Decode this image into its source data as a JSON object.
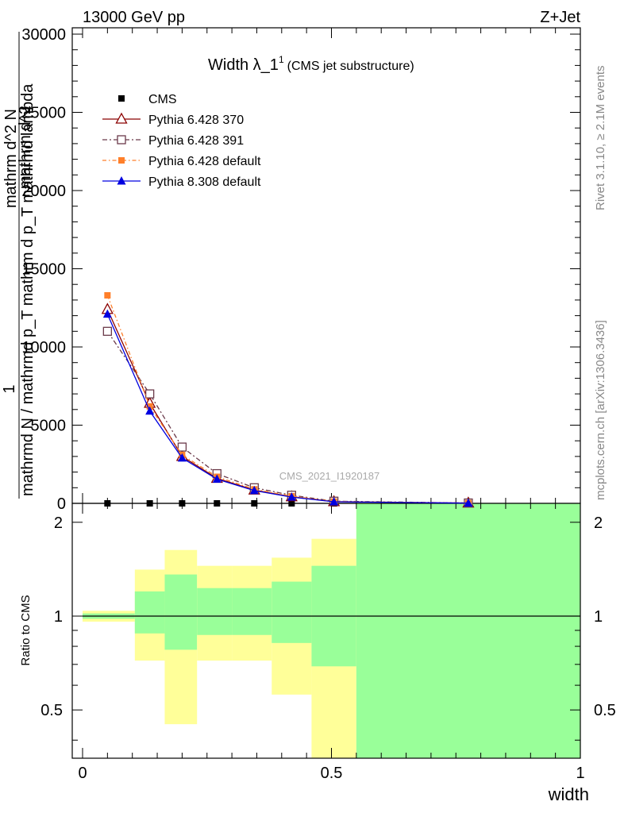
{
  "header": {
    "left": "13000 GeV pp",
    "right": "Z+Jet"
  },
  "plot_title": {
    "main": "Width λ_1",
    "sup": "1",
    "sub": "(CMS jet substructure)"
  },
  "watermark": "CMS_2021_I1920187",
  "side_labels": {
    "rivet": "Rivet 3.1.10, ≥ 2.1M events",
    "mcplots": "mcplots.cern.ch [arXiv:1306.3436]"
  },
  "y_label": {
    "line_one": "1",
    "line_two": "mathrmd N / mathrmd p_T mathrm d p_T mathrmd lambda",
    "line_three": "mathrm d^2 N",
    "line_four": "mathrm d^2"
  },
  "ratio_ylabel": "Ratio to CMS",
  "x_label": "width",
  "colors": {
    "cms": "#000000",
    "p370": "#8b0000",
    "p391": "#6b3a4a",
    "p6def": "#ff7f2a",
    "p8def": "#0000e0",
    "band_inner": "#99ff99",
    "band_outer": "#ffff99"
  },
  "chart_data": [
    {
      "type": "line",
      "panel": "main",
      "xlim": [
        0,
        1
      ],
      "ylim": [
        0,
        30000
      ],
      "y_ticks": [
        "0",
        "5000",
        "10000",
        "15000",
        "20000",
        "25000",
        "30000"
      ],
      "y_tick_values": [
        0,
        5000,
        10000,
        15000,
        20000,
        25000,
        30000
      ],
      "x": [
        0.05,
        0.135,
        0.2,
        0.27,
        0.345,
        0.42,
        0.505,
        0.775
      ],
      "legend_position": "top-left",
      "series": [
        {
          "name": "CMS",
          "key": "cms",
          "marker": "filled-square",
          "line": "none",
          "values": [
            0,
            0,
            0,
            0,
            0,
            0,
            0,
            0
          ]
        },
        {
          "name": "Pythia 6.428 370",
          "key": "p370",
          "marker": "open-triangle",
          "line": "solid",
          "values": [
            12400,
            6400,
            3000,
            1600,
            850,
            420,
            110,
            20
          ]
        },
        {
          "name": "Pythia 6.428 391",
          "key": "p391",
          "marker": "open-square",
          "line": "dashdot",
          "values": [
            11000,
            7000,
            3600,
            1900,
            1000,
            520,
            140,
            25
          ]
        },
        {
          "name": "Pythia 6.428 default",
          "key": "p6def",
          "marker": "filled-small-square",
          "line": "dashdot-orange",
          "values": [
            13300,
            6200,
            3100,
            1700,
            900,
            460,
            120,
            20
          ]
        },
        {
          "name": "Pythia 8.308 default",
          "key": "p8def",
          "marker": "filled-triangle",
          "line": "solid",
          "values": [
            12100,
            5900,
            2900,
            1550,
            820,
            400,
            100,
            15
          ]
        }
      ]
    },
    {
      "type": "area",
      "panel": "ratio",
      "xlim": [
        0,
        1
      ],
      "ylim": [
        0.35,
        2.3
      ],
      "y_ticks": [
        "0.5",
        "1",
        "2"
      ],
      "y_tick_values": [
        0.5,
        1,
        2
      ],
      "x_ticks": [
        "0",
        "0.5",
        "1"
      ],
      "x_tick_values": [
        0,
        0.5,
        1
      ],
      "reference_line": 1,
      "bins": [
        {
          "x0": 0.0,
          "x1": 0.105,
          "outer_lo": 0.96,
          "outer_hi": 1.04,
          "inner_lo": 0.98,
          "inner_hi": 1.02
        },
        {
          "x0": 0.105,
          "x1": 0.165,
          "outer_lo": 0.72,
          "outer_hi": 1.41,
          "inner_lo": 0.88,
          "inner_hi": 1.2
        },
        {
          "x0": 0.165,
          "x1": 0.23,
          "outer_lo": 0.45,
          "outer_hi": 1.63,
          "inner_lo": 0.78,
          "inner_hi": 1.36
        },
        {
          "x0": 0.23,
          "x1": 0.3,
          "outer_lo": 0.72,
          "outer_hi": 1.45,
          "inner_lo": 0.87,
          "inner_hi": 1.23
        },
        {
          "x0": 0.3,
          "x1": 0.38,
          "outer_lo": 0.72,
          "outer_hi": 1.45,
          "inner_lo": 0.87,
          "inner_hi": 1.23
        },
        {
          "x0": 0.38,
          "x1": 0.46,
          "outer_lo": 0.56,
          "outer_hi": 1.54,
          "inner_lo": 0.82,
          "inner_hi": 1.29
        },
        {
          "x0": 0.46,
          "x1": 0.55,
          "outer_lo": 0.35,
          "outer_hi": 1.77,
          "inner_lo": 0.69,
          "inner_hi": 1.45
        },
        {
          "x0": 0.55,
          "x1": 1.0,
          "outer_lo": 0.35,
          "outer_hi": 2.3,
          "inner_lo": 0.35,
          "inner_hi": 2.3
        }
      ]
    }
  ]
}
